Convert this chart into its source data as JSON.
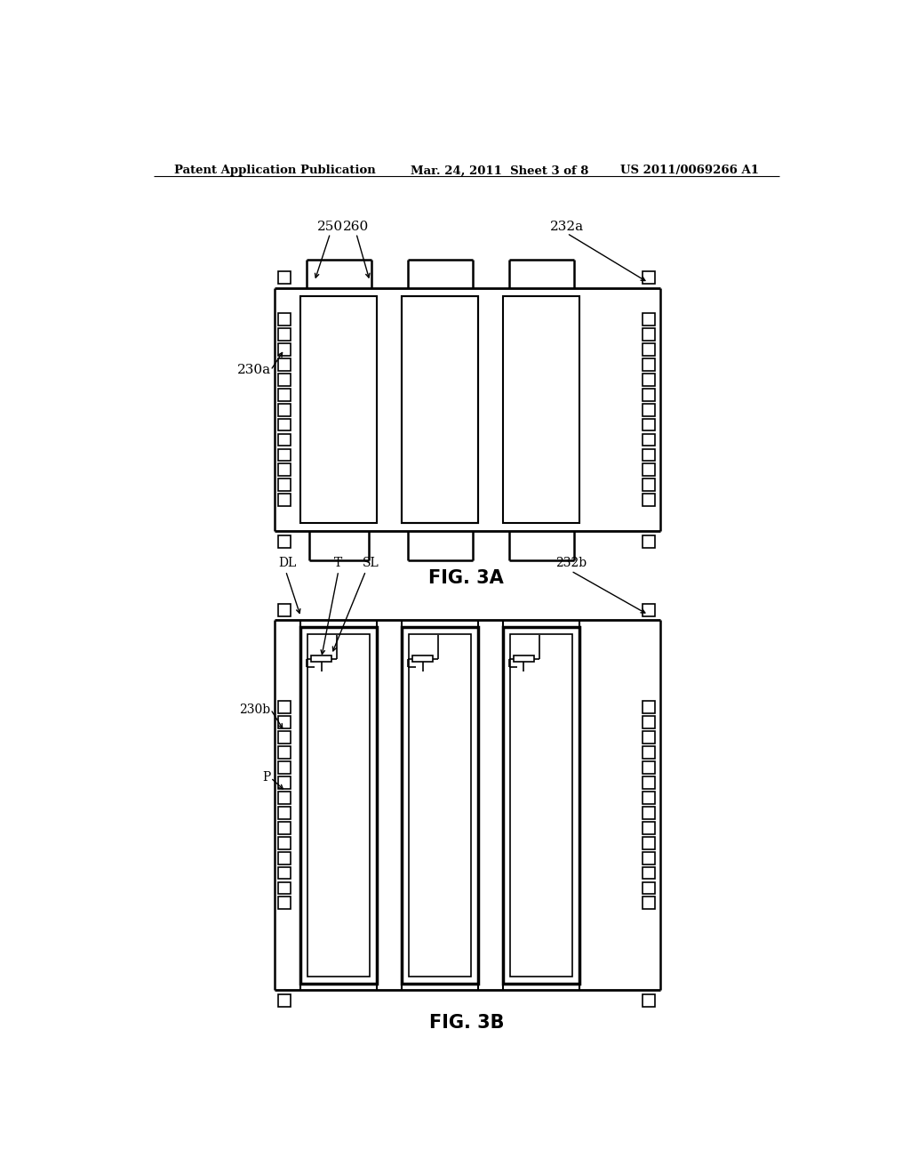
{
  "bg_color": "#ffffff",
  "line_color": "#000000",
  "header_text": "Patent Application Publication",
  "header_date": "Mar. 24, 2011  Sheet 3 of 8",
  "header_patent": "US 2011/0069266 A1",
  "fig3a_label": "FIG. 3A",
  "fig3b_label": "FIG. 3B"
}
